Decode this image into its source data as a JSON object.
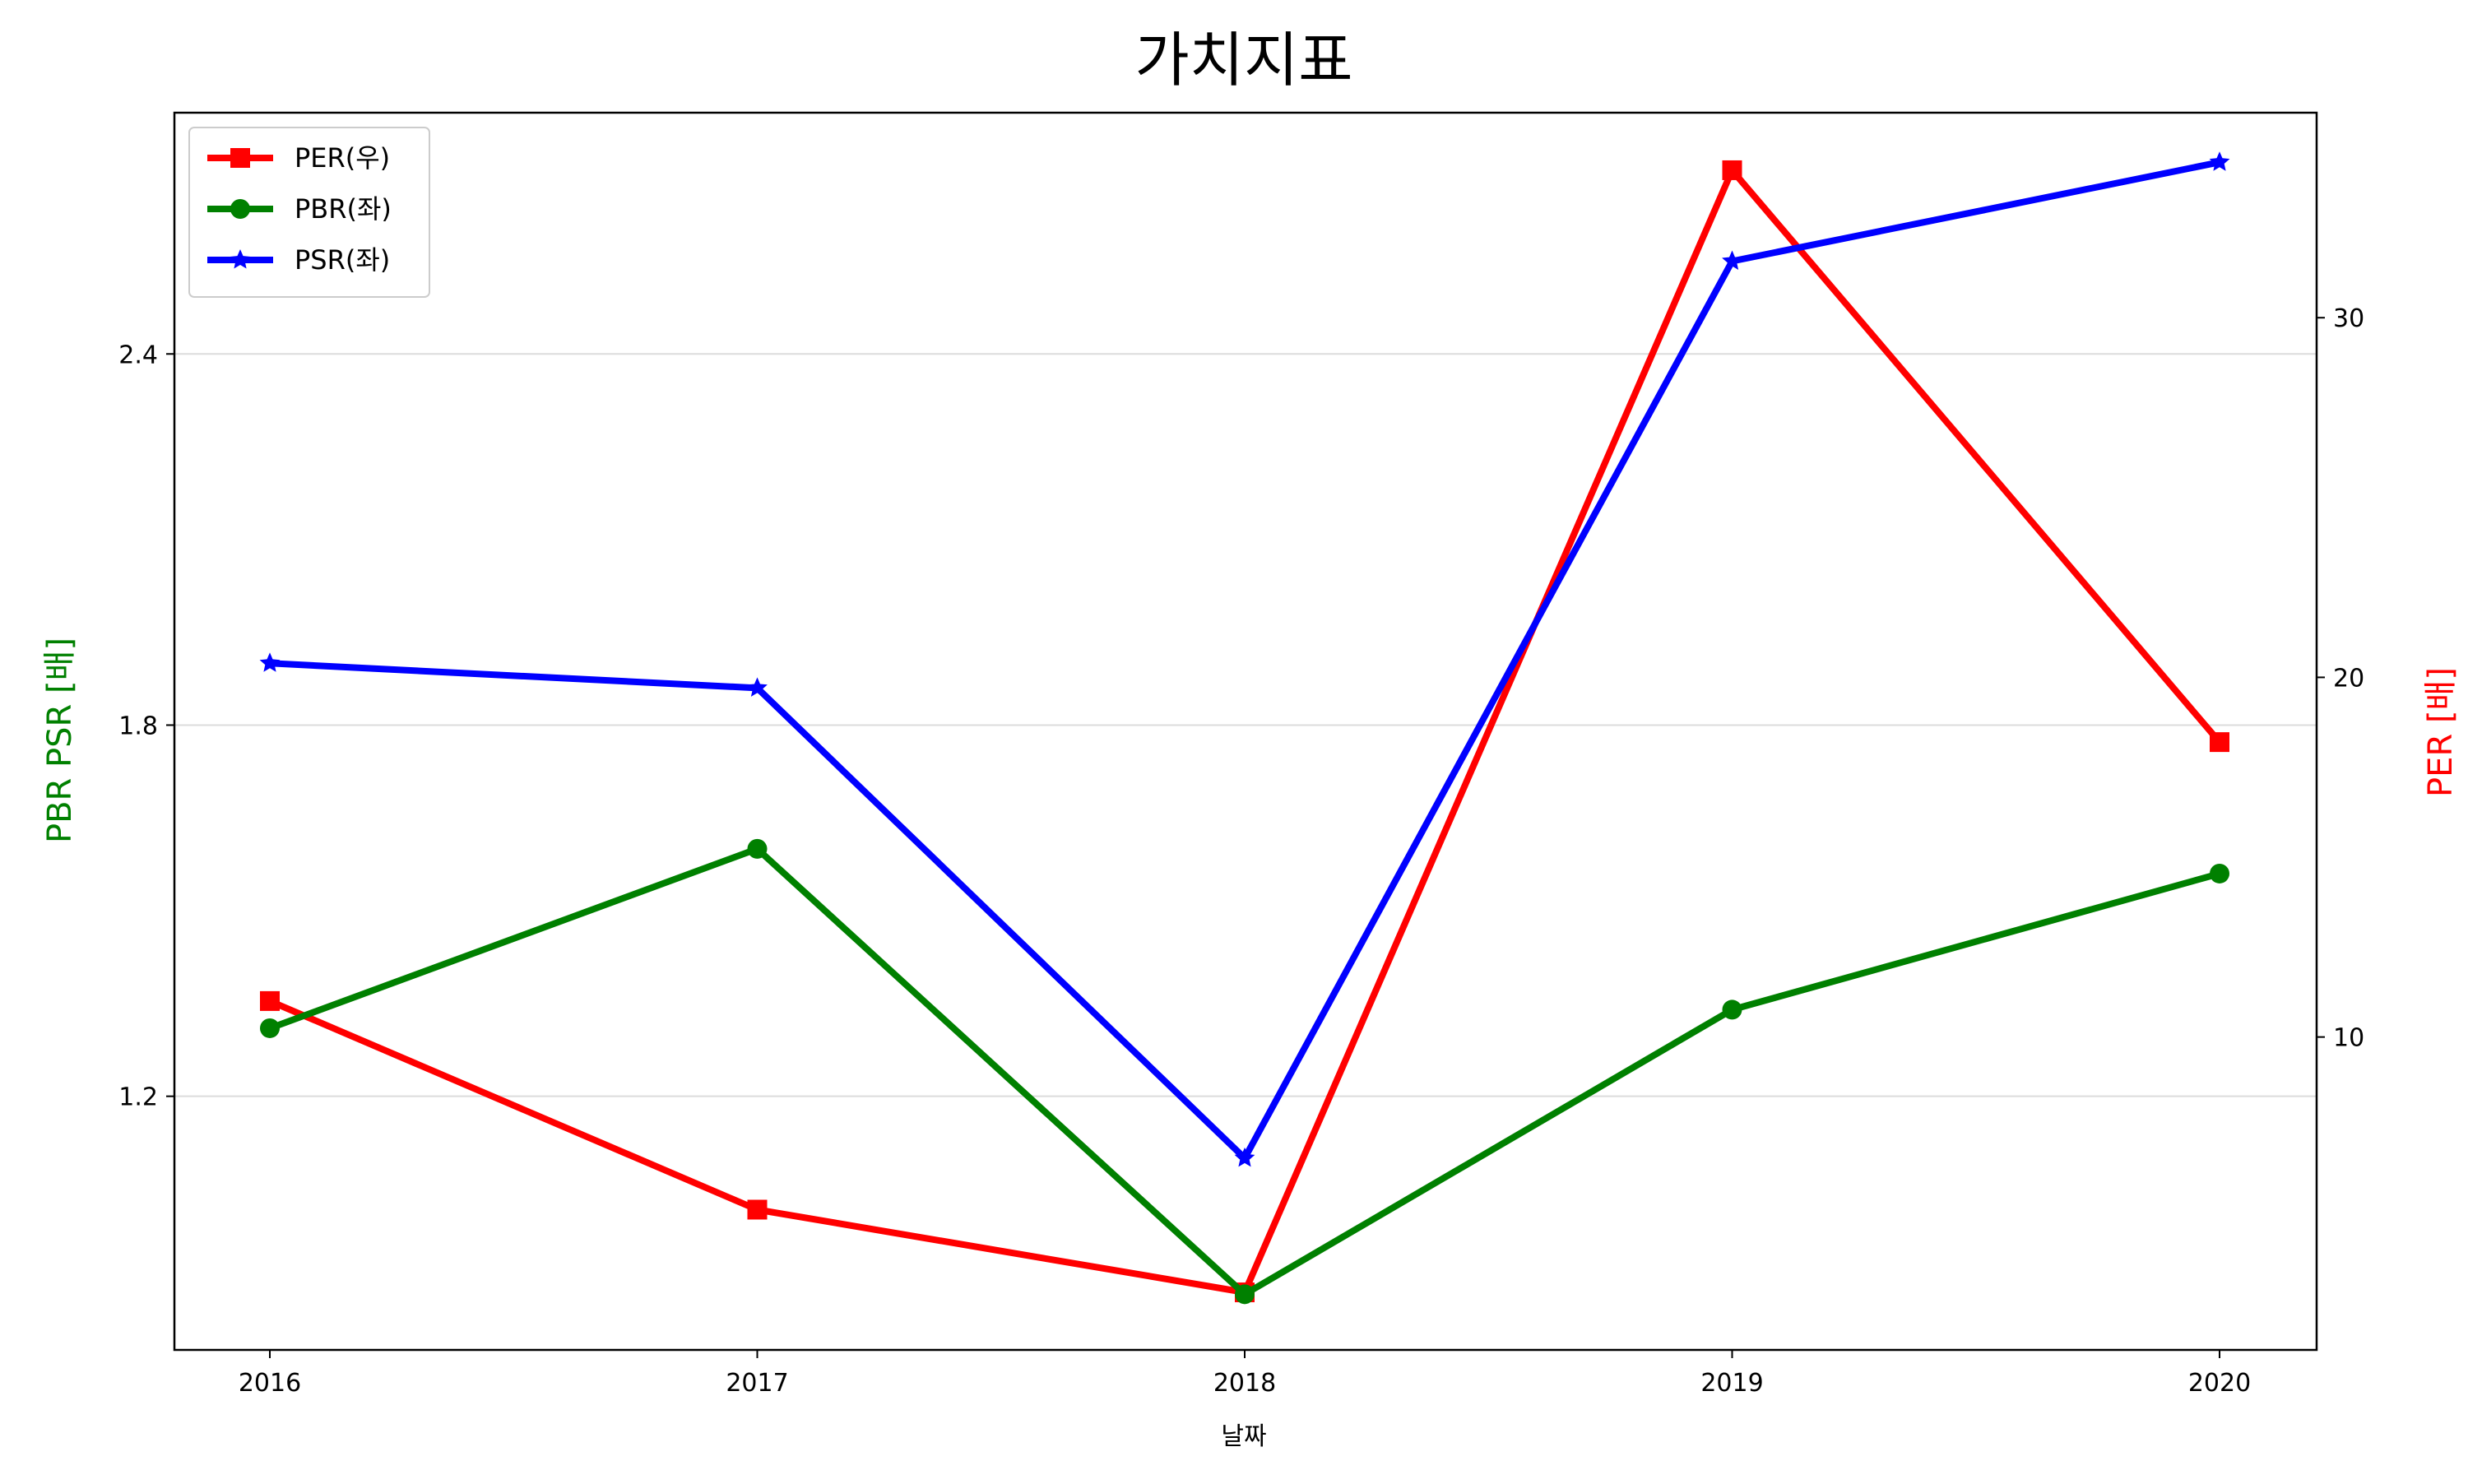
{
  "chart_data": {
    "type": "line",
    "title": "가치지표",
    "xlabel": "날짜",
    "ylabel_left": "PBR PSR [배]",
    "ylabel_right": "PER [배]",
    "categories": [
      "2016",
      "2017",
      "2018",
      "2019",
      "2020"
    ],
    "left_axis": {
      "ticks": [
        1.2,
        1.8,
        2.4
      ],
      "tick_labels": [
        "1.2",
        "1.8",
        "2.4"
      ],
      "ylim": [
        0.79,
        2.79
      ],
      "color": "#008000"
    },
    "right_axis": {
      "ticks": [
        10,
        20,
        30
      ],
      "tick_labels": [
        "10",
        "20",
        "30"
      ],
      "ylim": [
        1.3,
        35.7
      ],
      "color": "#ff0000"
    },
    "grid": "horizontal (left axis)",
    "legend_position": "top-left",
    "series": [
      {
        "name": "PER(우)",
        "axis": "right",
        "color": "#ff0000",
        "marker": "square",
        "values": [
          11.0,
          5.2,
          2.9,
          34.1,
          18.2
        ]
      },
      {
        "name": "PBR(좌)",
        "axis": "left",
        "color": "#008000",
        "marker": "circle",
        "values": [
          1.31,
          1.6,
          0.88,
          1.34,
          1.56
        ]
      },
      {
        "name": "PSR(좌)",
        "axis": "left",
        "color": "#0000ff",
        "marker": "star",
        "values": [
          1.9,
          1.86,
          1.1,
          2.55,
          2.71
        ]
      }
    ]
  }
}
